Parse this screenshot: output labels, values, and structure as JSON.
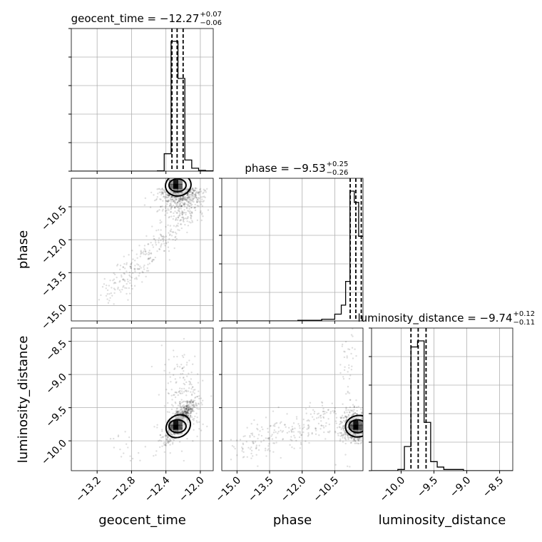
{
  "chart_data": {
    "type": "corner",
    "parameters": [
      "geocent_time",
      "phase",
      "luminosity_distance"
    ],
    "axis_labels": {
      "geocent_time": "geocent_time",
      "phase": "phase",
      "luminosity_distance": "luminosity_distance"
    },
    "titles": [
      {
        "param": "geocent_time",
        "text": "geocent_time = −12.27",
        "plus": "+0.07",
        "minus": "−0.06"
      },
      {
        "param": "phase",
        "text": "phase = −9.53",
        "plus": "+0.25",
        "minus": "−0.26"
      },
      {
        "param": "luminosity_distance",
        "text": "luminosity_distance = −9.74",
        "plus": "+0.12",
        "minus": "−0.11"
      }
    ],
    "ranges": {
      "geocent_time": [
        -13.5,
        -11.85
      ],
      "phase": [
        -15.7,
        -9.2
      ],
      "luminosity_distance": [
        -10.45,
        -8.3
      ]
    },
    "ticks": {
      "geocent_time": {
        "values": [
          -13.2,
          -12.8,
          -12.4,
          -12.0
        ],
        "labels": [
          "−13.2",
          "−12.8",
          "−12.4",
          "−12.0"
        ]
      },
      "phase": {
        "values": [
          -15.0,
          -13.5,
          -12.0,
          -10.5
        ],
        "labels": [
          "−15.0",
          "−13.5",
          "−12.0",
          "−10.5"
        ]
      },
      "luminosity_distance": {
        "values": [
          -10.0,
          -9.5,
          -9.0,
          -8.5
        ],
        "labels": [
          "−10.0",
          "−9.5",
          "−9.0",
          "−8.5"
        ]
      }
    },
    "quantiles": {
      "geocent_time": [
        -12.33,
        -12.27,
        -12.2
      ],
      "phase": [
        -9.79,
        -9.53,
        -9.28
      ],
      "luminosity_distance": [
        -9.85,
        -9.74,
        -9.62
      ]
    },
    "histograms": {
      "geocent_time": {
        "edges": [
          -13.5,
          -12.5,
          -12.42,
          -12.34,
          -12.26,
          -12.18,
          -12.1,
          -12.02,
          -11.94,
          -11.85
        ],
        "counts": [
          0,
          1,
          47,
          350,
          250,
          30,
          8,
          2,
          1
        ]
      },
      "phase": {
        "edges": [
          -15.7,
          -12.2,
          -11.1,
          -10.5,
          -10.2,
          -10.0,
          -9.8,
          -9.6,
          -9.4,
          -9.2
        ],
        "counts": [
          0,
          1,
          3,
          12,
          28,
          70,
          230,
          210,
          150
        ]
      },
      "luminosity_distance": {
        "edges": [
          -10.45,
          -10.05,
          -9.95,
          -9.85,
          -9.75,
          -9.65,
          -9.55,
          -9.45,
          -9.35,
          -9.05,
          -8.3
        ],
        "counts": [
          0,
          2,
          40,
          205,
          215,
          80,
          15,
          6,
          2,
          0
        ]
      }
    },
    "grid": true,
    "scatter_points_shown": true
  }
}
